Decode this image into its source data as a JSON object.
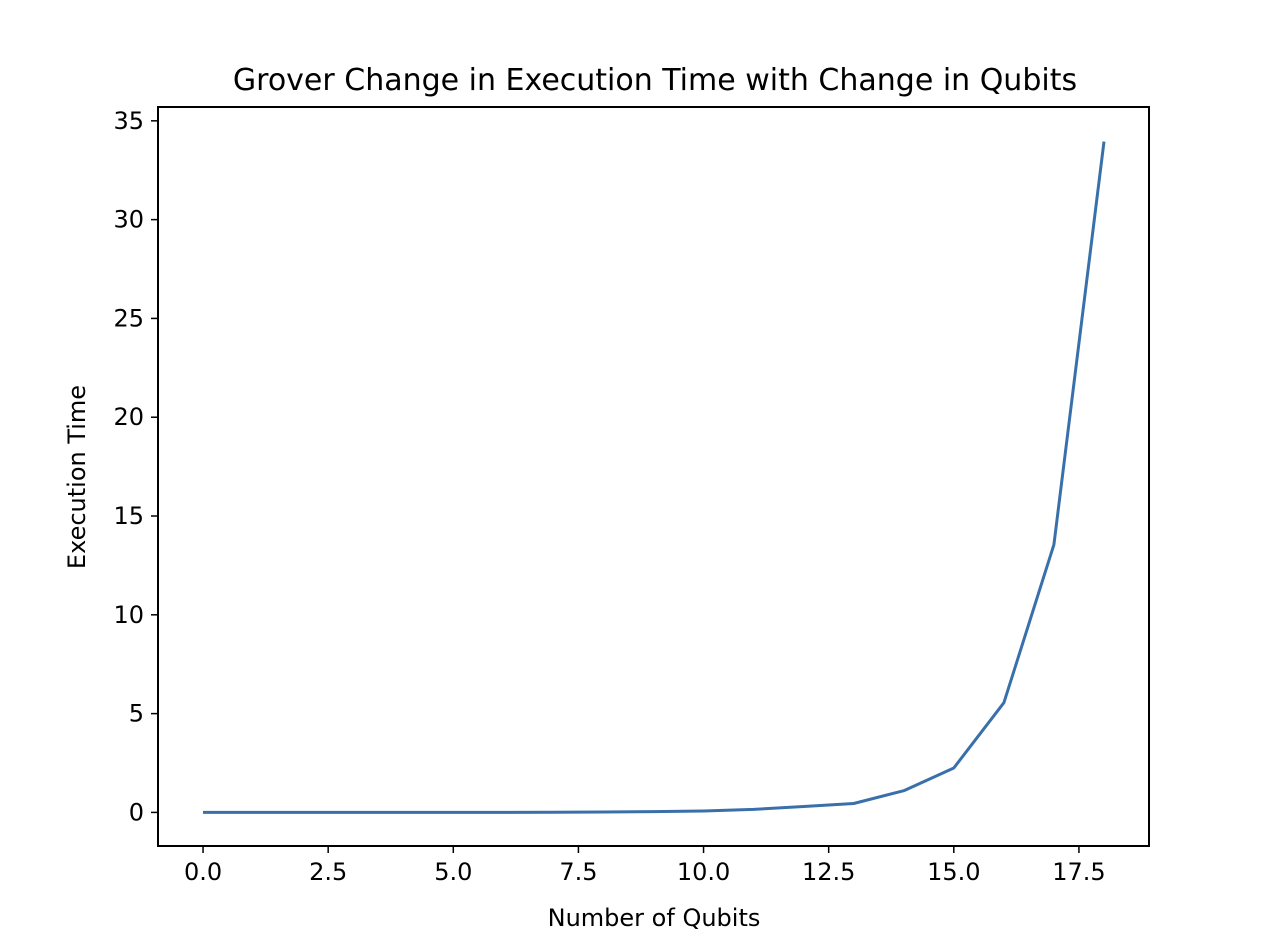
{
  "chart_data": {
    "type": "line",
    "title": "Grover Change in Execution Time with Change in Qubits",
    "xlabel": "Number of Qubits",
    "ylabel": "Execution Time",
    "xlim": [
      -0.9,
      18.9
    ],
    "ylim": [
      -1.7,
      35.7
    ],
    "xticks": [
      0,
      2.5,
      5,
      7.5,
      10,
      12.5,
      15,
      17.5
    ],
    "xtick_labels": [
      "0.0",
      "2.5",
      "5.0",
      "7.5",
      "10.0",
      "12.5",
      "15.0",
      "17.5"
    ],
    "yticks": [
      0,
      5,
      10,
      15,
      20,
      25,
      30,
      35
    ],
    "ytick_labels": [
      "0",
      "5",
      "10",
      "15",
      "20",
      "25",
      "30",
      "35"
    ],
    "grid": false,
    "series": [
      {
        "color": "#3a70aa",
        "x": [
          0,
          1,
          2,
          3,
          4,
          5,
          6,
          7,
          8,
          9,
          10,
          11,
          12,
          13,
          14,
          15,
          16,
          17,
          18
        ],
        "y": [
          0.0,
          0.0,
          0.0,
          0.0,
          0.0,
          0.0,
          0.0,
          0.01,
          0.02,
          0.04,
          0.07,
          0.15,
          0.3,
          0.45,
          1.1,
          2.25,
          5.55,
          13.55,
          33.95
        ]
      }
    ]
  }
}
